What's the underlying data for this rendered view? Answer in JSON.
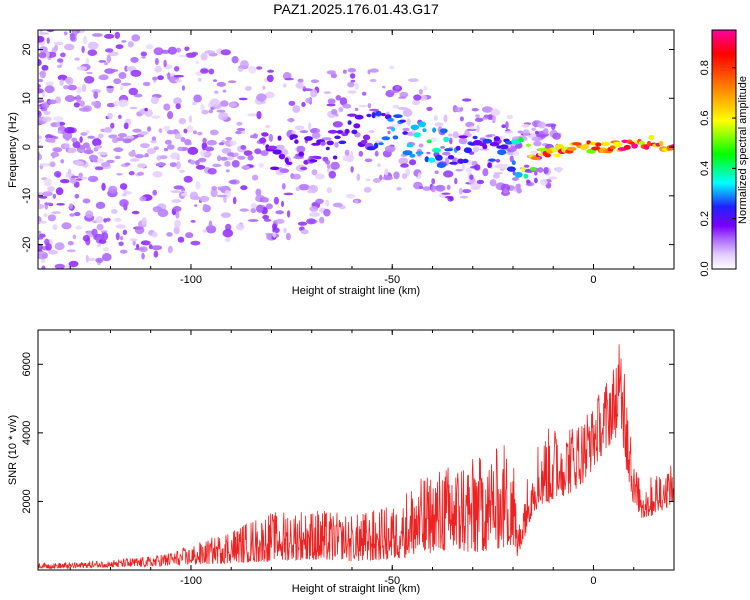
{
  "chart_data": [
    {
      "type": "heatmap",
      "title": "PAZ1.2025.176.01.43.G17",
      "xlabel": "Height of straight line (km)",
      "ylabel": "Frequency (Hz)",
      "xlim": [
        -138,
        20
      ],
      "ylim": [
        -25,
        24
      ],
      "xticks": [
        -100,
        -50,
        0
      ],
      "yticks": [
        -20,
        -10,
        0,
        10,
        20
      ],
      "grid": false,
      "colorbar": {
        "label": "Normalized spectral amplitude",
        "range": [
          0,
          0.95
        ],
        "ticks": [
          0.0,
          0.2,
          0.4,
          0.6,
          0.8
        ],
        "colormap": [
          "#ffffff",
          "#e4ccff",
          "#b070ff",
          "#7a00ff",
          "#2020ff",
          "#00ffff",
          "#00ff00",
          "#ffff00",
          "#ff8000",
          "#ff0000",
          "#ff00a0"
        ]
      },
      "ridge": {
        "x": [
          -100,
          -90,
          -80,
          -70,
          -60,
          -50,
          -45,
          -40,
          -35,
          -30,
          -25,
          -20,
          -15,
          -10,
          -5,
          0,
          5,
          10,
          15,
          20
        ],
        "frequency": [
          0,
          0,
          -1,
          -2,
          3,
          4,
          2,
          1,
          -1,
          0,
          0,
          -2,
          -2,
          -1,
          0,
          0,
          0,
          1,
          1,
          0
        ],
        "amplitude": [
          0.1,
          0.12,
          0.18,
          0.2,
          0.22,
          0.3,
          0.35,
          0.4,
          0.3,
          0.25,
          0.25,
          0.28,
          0.8,
          0.82,
          0.85,
          0.85,
          0.88,
          0.9,
          0.92,
          0.92
        ]
      }
    },
    {
      "type": "line",
      "xlabel": "Height of straight line (km)",
      "ylabel": "SNR (10 * v/v)",
      "xlim": [
        -138,
        20
      ],
      "ylim": [
        0,
        7000
      ],
      "xticks": [
        -100,
        -50,
        0
      ],
      "yticks": [
        2000,
        4000,
        6000
      ],
      "grid": false,
      "color": "#ee2222",
      "envelope": {
        "x": [
          -138,
          -130,
          -120,
          -110,
          -100,
          -90,
          -80,
          -70,
          -60,
          -50,
          -45,
          -40,
          -35,
          -30,
          -25,
          -20,
          -19,
          -15,
          -10,
          -5,
          -2,
          0,
          3,
          5,
          7,
          8,
          9,
          10,
          12,
          15,
          18,
          20
        ],
        "low": [
          50,
          50,
          80,
          100,
          150,
          200,
          250,
          300,
          250,
          300,
          400,
          500,
          600,
          500,
          600,
          700,
          300,
          1700,
          2000,
          2300,
          2600,
          3000,
          3500,
          3800,
          4000,
          3000,
          2500,
          1800,
          1500,
          1600,
          1800,
          2000
        ],
        "high": [
          200,
          220,
          300,
          400,
          700,
          1200,
          1700,
          1800,
          1600,
          1900,
          2500,
          2900,
          3100,
          3300,
          3500,
          3900,
          1200,
          3600,
          4300,
          4400,
          4700,
          4900,
          5500,
          6000,
          6900,
          6800,
          4800,
          3200,
          2500,
          2800,
          3000,
          3100
        ]
      }
    }
  ]
}
